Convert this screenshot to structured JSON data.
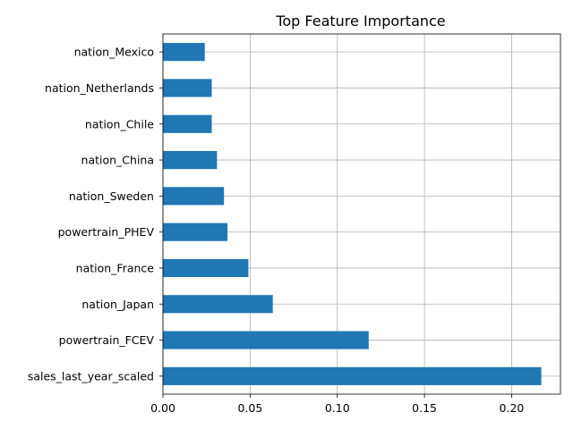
{
  "chart_data": {
    "type": "bar",
    "orientation": "horizontal",
    "title": "Top Feature Importance",
    "xlabel": "",
    "ylabel": "",
    "categories": [
      "sales_last_year_scaled",
      "powertrain_FCEV",
      "nation_Japan",
      "nation_France",
      "powertrain_PHEV",
      "nation_Sweden",
      "nation_China",
      "nation_Chile",
      "nation_Netherlands",
      "nation_Mexico"
    ],
    "values": [
      0.217,
      0.118,
      0.063,
      0.049,
      0.037,
      0.035,
      0.031,
      0.028,
      0.028,
      0.024
    ],
    "xlim": [
      0,
      0.228
    ],
    "xticks": [
      "0.00",
      "0.05",
      "0.10",
      "0.15",
      "0.20"
    ],
    "grid": true,
    "bar_color": "#1f77b4",
    "grid_color": "#b0b0b0"
  }
}
